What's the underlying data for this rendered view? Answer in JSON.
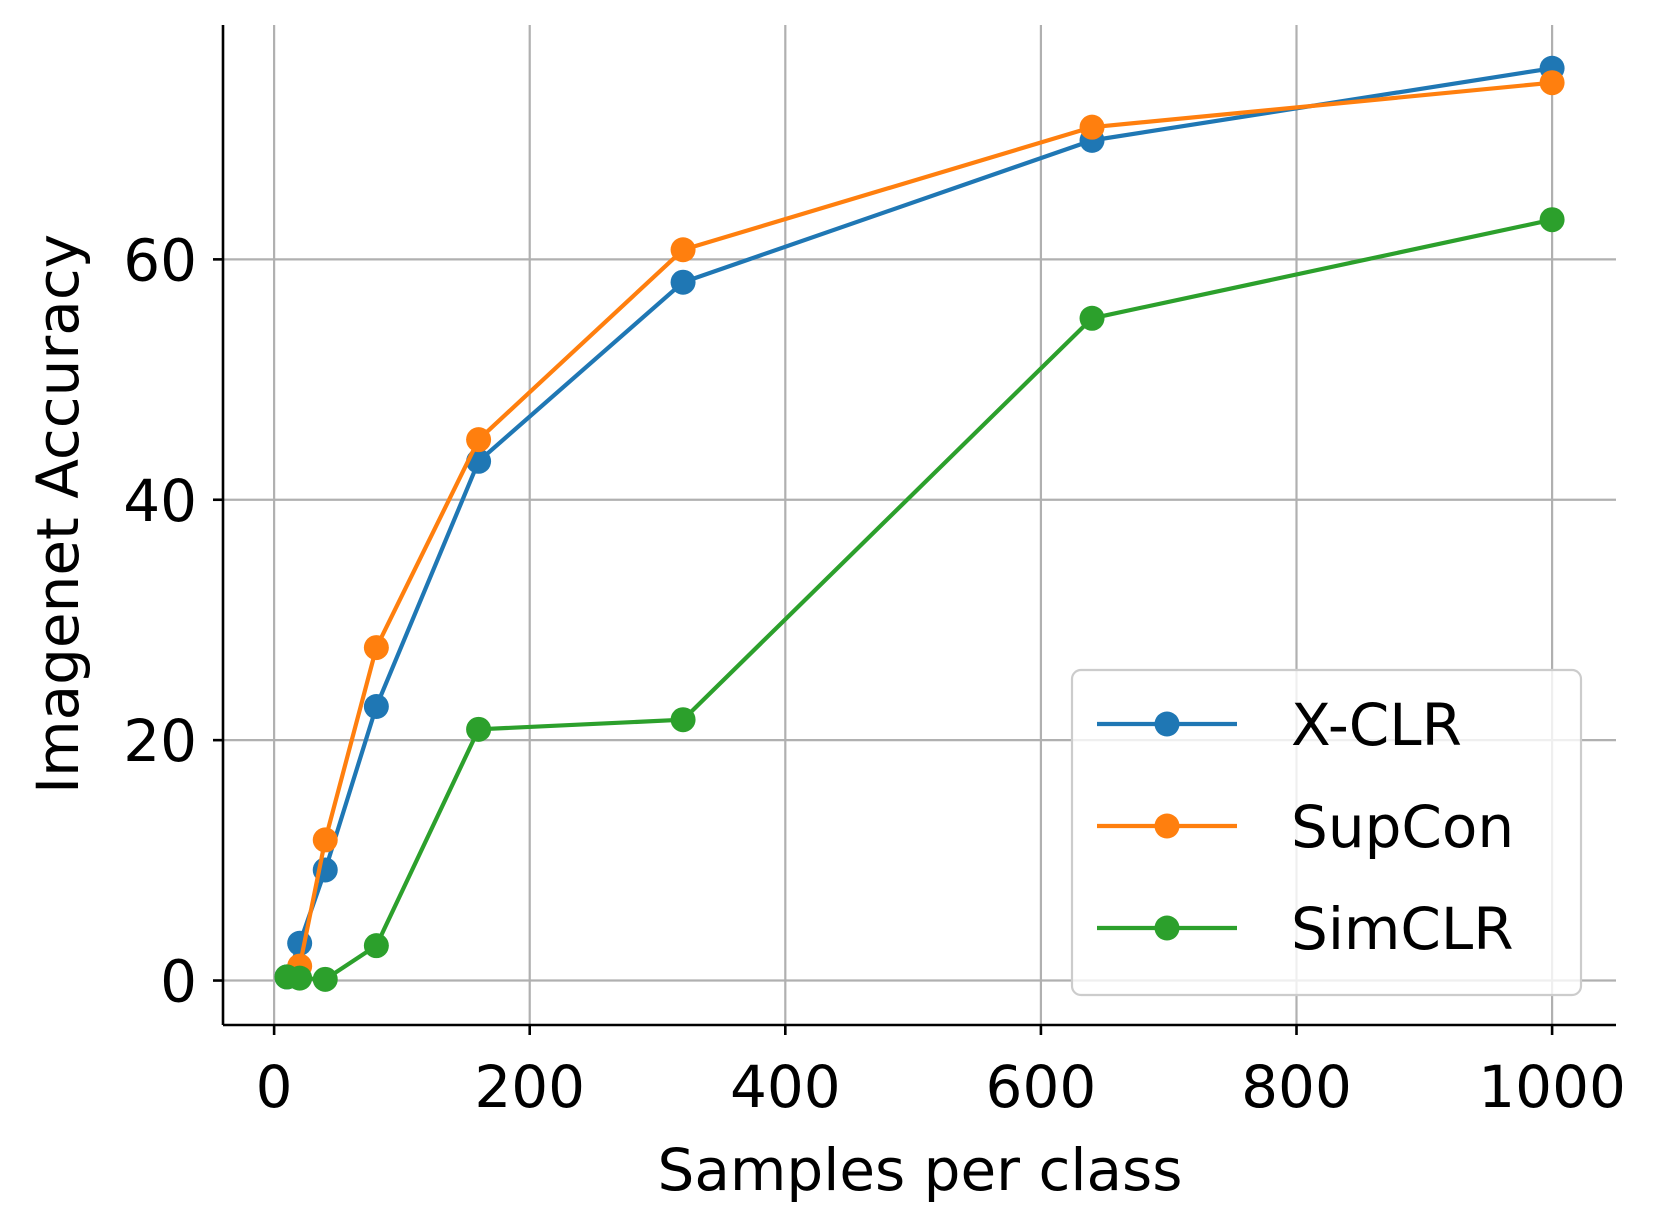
{
  "chart_data": {
    "type": "line",
    "title": "",
    "xlabel": "Samples per class",
    "ylabel": "Imagenet Accuracy",
    "xlim": [
      -40,
      1050
    ],
    "ylim": [
      -3.7,
      79.5
    ],
    "xticks": [
      0,
      200,
      400,
      600,
      800,
      1000
    ],
    "yticks": [
      0,
      20,
      40,
      60
    ],
    "grid": true,
    "legend_position": "lower-right",
    "series": [
      {
        "name": "X-CLR",
        "color": "#1f77b4",
        "x": [
          10,
          20,
          40,
          80,
          160,
          320,
          640,
          1000
        ],
        "y": [
          0.3,
          3.1,
          9.2,
          22.8,
          43.2,
          58.1,
          69.9,
          75.9
        ]
      },
      {
        "name": "SupCon",
        "color": "#ff7f0e",
        "x": [
          20,
          40,
          80,
          160,
          320,
          640,
          1000
        ],
        "y": [
          1.2,
          11.7,
          27.7,
          45.0,
          60.8,
          71.0,
          74.7
        ]
      },
      {
        "name": "SimCLR",
        "color": "#2ca02c",
        "x": [
          10,
          20,
          40,
          80,
          160,
          320,
          640,
          1000
        ],
        "y": [
          0.3,
          0.2,
          0.1,
          2.9,
          20.9,
          21.7,
          55.1,
          63.3
        ]
      }
    ]
  }
}
